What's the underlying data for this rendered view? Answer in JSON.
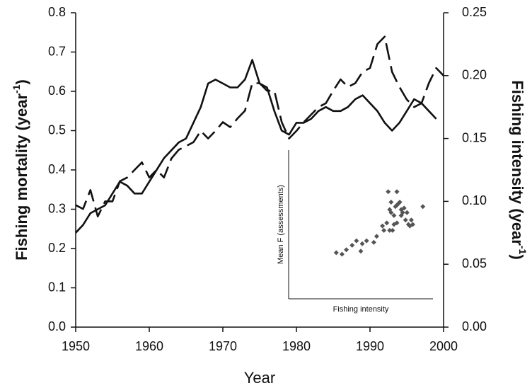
{
  "chart_data": [
    {
      "type": "line",
      "xlabel": "Year",
      "ylabel": [
        "Fishing mortality (year",
        "-1",
        ")"
      ],
      "y2label": [
        "Fishing intensity (year",
        "-1",
        ")"
      ],
      "x": [
        1950,
        1951,
        1952,
        1953,
        1954,
        1955,
        1956,
        1957,
        1958,
        1959,
        1960,
        1961,
        1962,
        1963,
        1964,
        1965,
        1966,
        1967,
        1968,
        1969,
        1970,
        1971,
        1972,
        1973,
        1974,
        1975,
        1976,
        1977,
        1978,
        1979,
        1980,
        1981,
        1982,
        1983,
        1984,
        1985,
        1986,
        1987,
        1988,
        1989,
        1990,
        1991,
        1992,
        1993,
        1994,
        1995,
        1996,
        1997,
        1998,
        1999,
        2000
      ],
      "xlim": [
        1950,
        2000
      ],
      "xticks": [
        1950,
        1960,
        1970,
        1980,
        1990,
        2000
      ],
      "ylim": [
        0,
        0.8
      ],
      "yticks": [
        {
          "value": 0,
          "label": "0.0"
        },
        0.1,
        0.2,
        0.3,
        0.4,
        0.5,
        0.6,
        0.7,
        0.8
      ],
      "y2lim": [
        0,
        0.25
      ],
      "y2ticks": [
        {
          "value": 0,
          "label": "0.00"
        },
        0.05,
        {
          "value": 0.1,
          "label": "0.10"
        },
        0.15,
        {
          "value": 0.2,
          "label": "0.20"
        },
        0.25
      ],
      "series": [
        {
          "color": "#111111",
          "style": "solid",
          "values": [
            0.24,
            0.26,
            0.29,
            0.3,
            0.31,
            0.34,
            0.37,
            0.36,
            0.34,
            0.34,
            0.37,
            0.4,
            0.43,
            0.45,
            0.47,
            0.48,
            0.52,
            0.56,
            0.62,
            0.63,
            0.62,
            0.61,
            0.61,
            0.63,
            0.68,
            0.62,
            0.61,
            0.55,
            0.5,
            0.49,
            0.52,
            0.52,
            0.53,
            0.55,
            0.56,
            0.55,
            0.55,
            0.56,
            0.58,
            0.59,
            0.57,
            0.55,
            0.52,
            0.5,
            0.52,
            0.55,
            0.58,
            0.57,
            0.55,
            0.53,
            null
          ]
        },
        {
          "color": "#111111",
          "style": "dashed",
          "axis": "y2",
          "values": [
            0.097,
            0.094,
            0.109,
            0.088,
            0.1,
            0.1,
            0.116,
            0.119,
            0.125,
            0.131,
            0.119,
            0.125,
            0.119,
            0.134,
            0.141,
            0.144,
            0.147,
            0.156,
            0.15,
            0.156,
            0.163,
            0.159,
            0.166,
            0.172,
            0.194,
            0.194,
            0.188,
            0.188,
            0.163,
            0.15,
            0.156,
            0.163,
            0.169,
            0.175,
            0.178,
            0.188,
            0.197,
            0.191,
            0.194,
            0.203,
            0.206,
            0.225,
            0.231,
            0.203,
            0.191,
            0.181,
            0.175,
            0.178,
            0.194,
            0.206,
            0.2
          ]
        }
      ]
    },
    {
      "type": "scatter",
      "xlabel": "Fishing intensity",
      "ylabel": "Mean F (assessments)",
      "xlim": [
        0,
        1
      ],
      "ylim": [
        0,
        1
      ],
      "color": "#555555",
      "x": [
        0.33,
        0.37,
        0.4,
        0.44,
        0.47,
        0.5,
        0.51,
        0.54,
        0.59,
        0.61,
        0.65,
        0.66,
        0.68,
        0.7,
        0.69,
        0.71,
        0.71,
        0.73,
        0.74,
        0.75,
        0.75,
        0.76,
        0.77,
        0.78,
        0.78,
        0.79,
        0.8,
        0.81,
        0.82,
        0.83,
        0.84,
        0.85,
        0.86,
        0.93,
        0.72,
        0.73,
        0.75,
        0.7
      ],
      "values": [
        0.31,
        0.3,
        0.33,
        0.36,
        0.39,
        0.32,
        0.37,
        0.39,
        0.38,
        0.42,
        0.49,
        0.46,
        0.51,
        0.6,
        0.72,
        0.65,
        0.58,
        0.56,
        0.62,
        0.63,
        0.72,
        0.64,
        0.65,
        0.6,
        0.56,
        0.58,
        0.61,
        0.53,
        0.58,
        0.5,
        0.49,
        0.53,
        0.5,
        0.62,
        0.46,
        0.5,
        0.51,
        0.46
      ]
    }
  ]
}
